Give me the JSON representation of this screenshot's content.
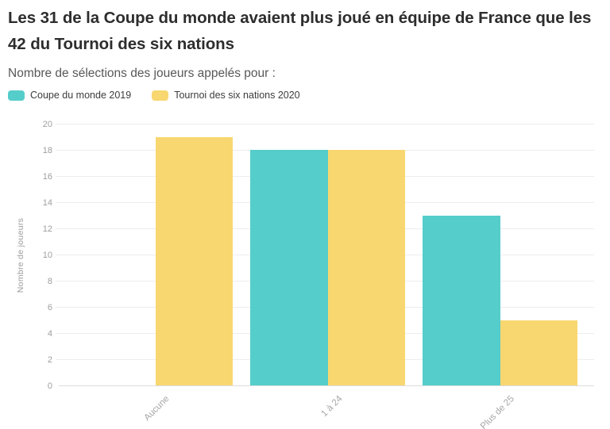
{
  "chart_data": {
    "type": "bar",
    "bar_layout": "grouped",
    "title": "Les 31 de la Coupe du monde avaient plus joué en équipe de France que les 42 du Tournoi des six nations",
    "subtitle": "Nombre de sélections des joueurs appelés pour :",
    "categories": [
      "Aucune",
      "1 à 24",
      "Plus de 25"
    ],
    "series": [
      {
        "name": "Coupe du monde 2019",
        "color": "#55CDCB",
        "values": [
          0,
          18,
          13
        ]
      },
      {
        "name": "Tournoi des six nations 2020",
        "color": "#F8D770",
        "values": [
          19,
          18,
          5
        ]
      }
    ],
    "xlabel": "",
    "ylabel": "Nombre de joueurs",
    "ylim": [
      0,
      20
    ],
    "ytick_step": 2,
    "grid": "horizontal",
    "legend_position": "top-left",
    "background_color": "#ffffff",
    "gridline_color": "#ededed",
    "axis_text_color": "#9e9e9e"
  }
}
